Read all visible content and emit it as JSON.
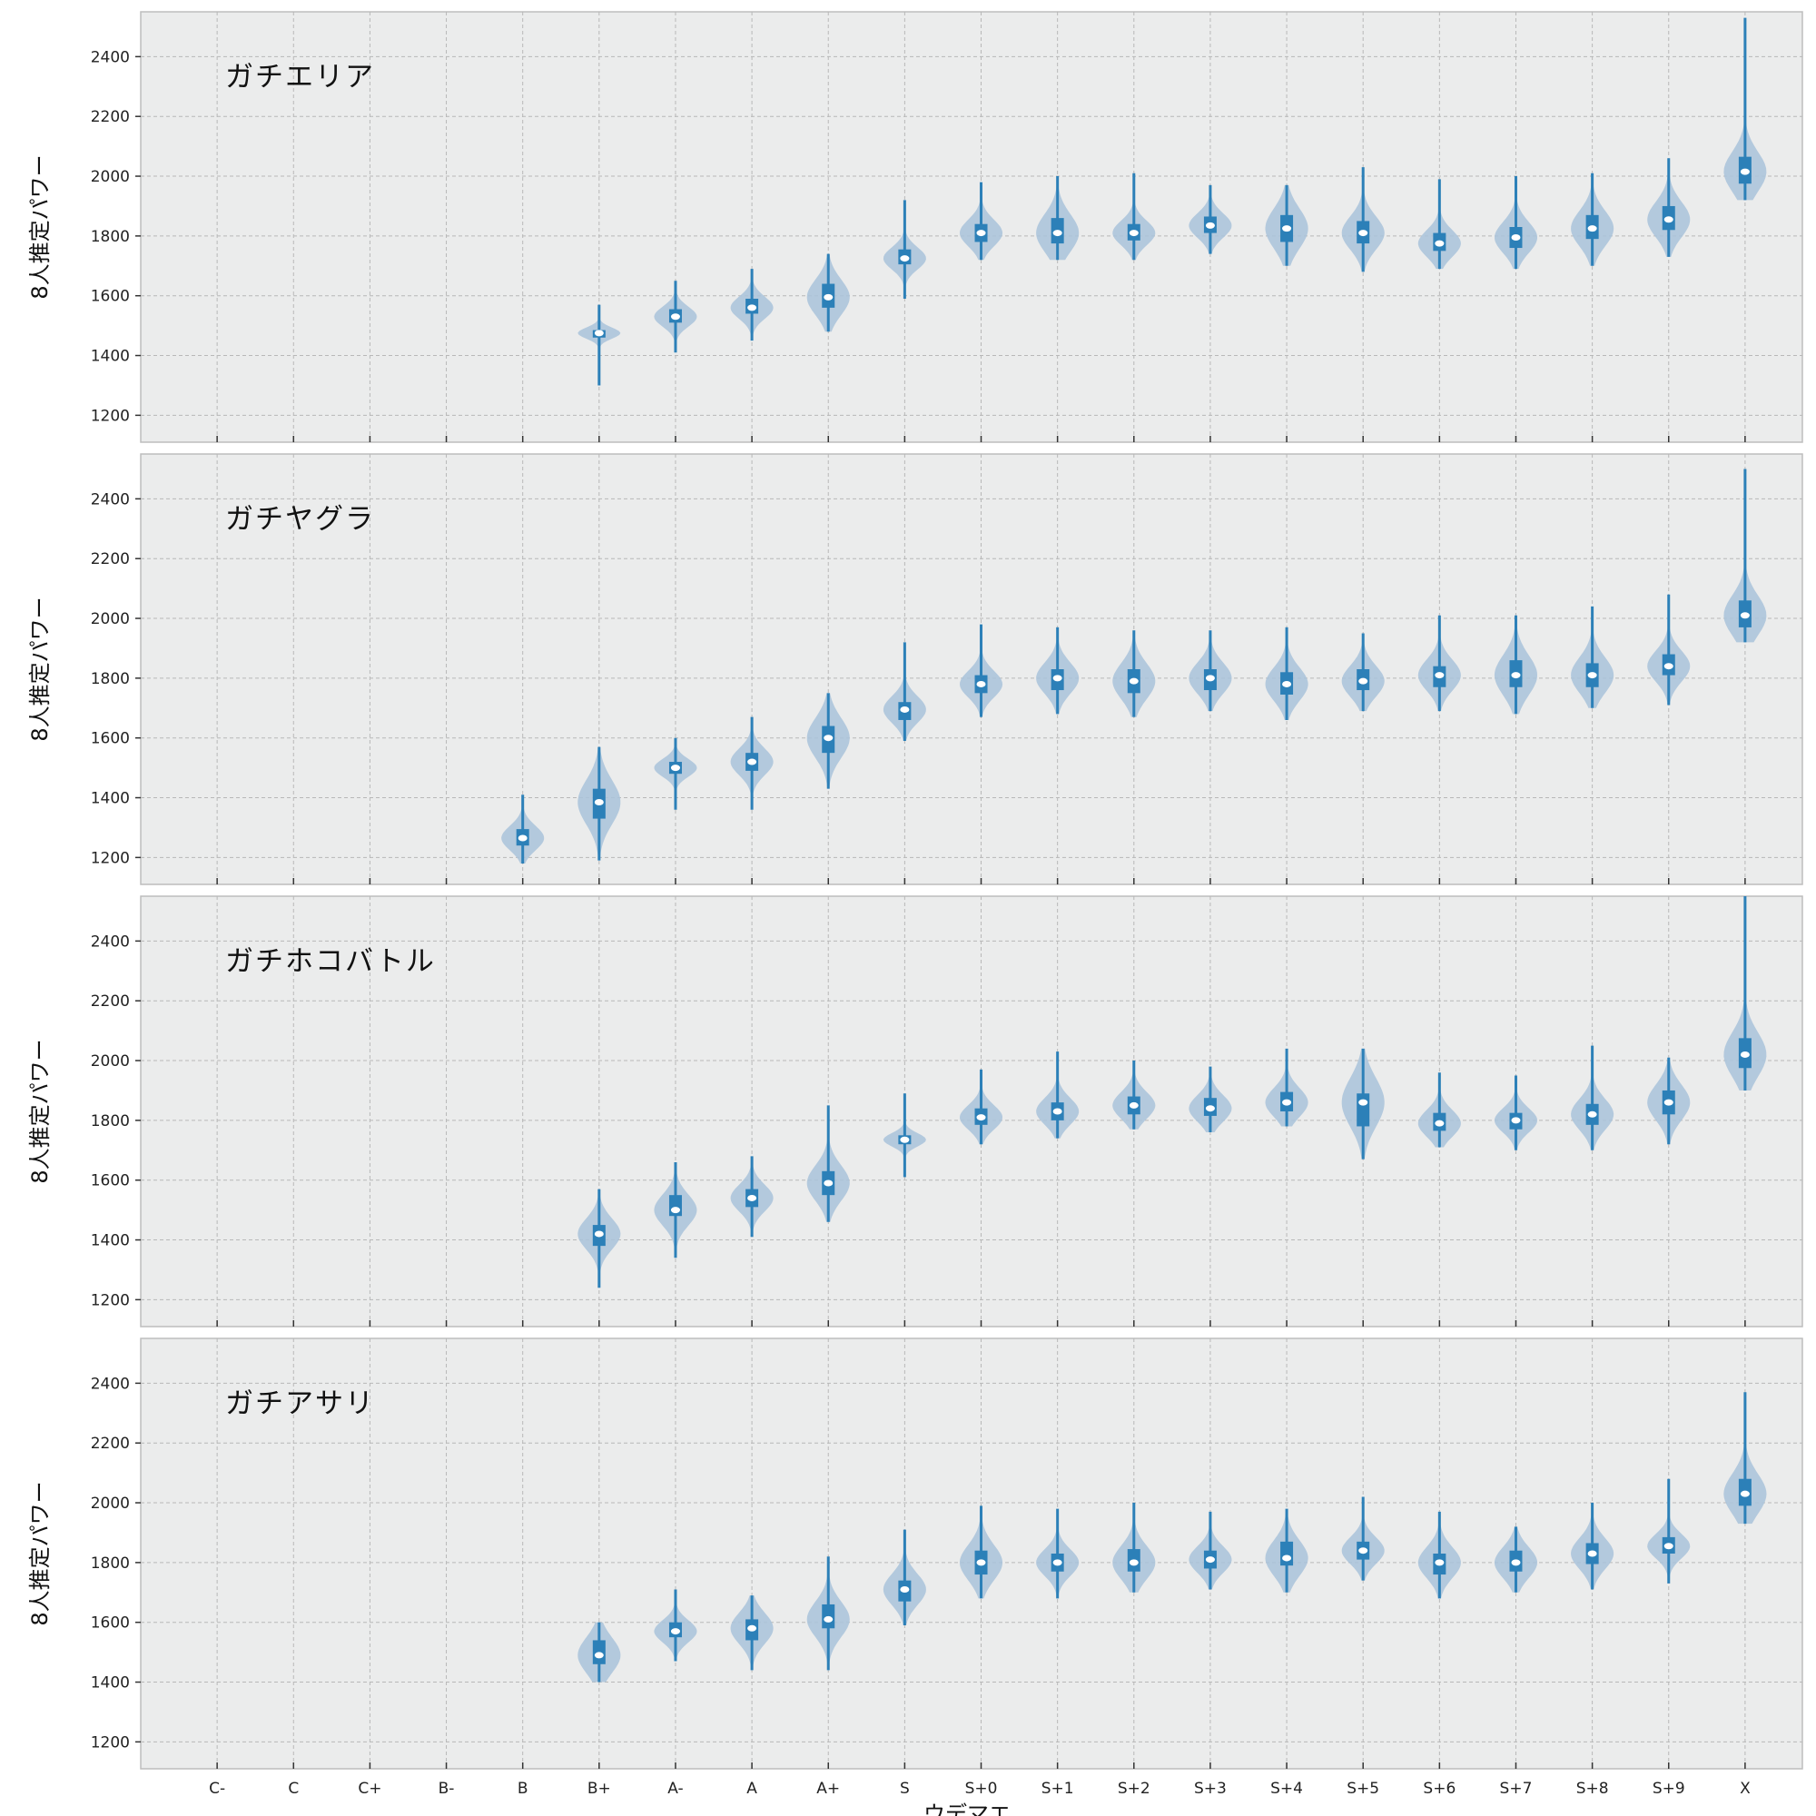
{
  "chart_data": {
    "type": "violin",
    "xlabel": "ウデマエ",
    "ylabel": "8人推定パワー",
    "categories": [
      "C-",
      "C",
      "C+",
      "B-",
      "B",
      "B+",
      "A-",
      "A",
      "A+",
      "S",
      "S+0",
      "S+1",
      "S+2",
      "S+3",
      "S+4",
      "S+5",
      "S+6",
      "S+7",
      "S+8",
      "S+9",
      "X"
    ],
    "yticks": [
      1200,
      1400,
      1600,
      1800,
      2000,
      2200,
      2400
    ],
    "ylim": [
      1110,
      2550
    ],
    "grid": true,
    "colors": {
      "body": "#a9c3db",
      "line": "#2c80b8",
      "median": "#ffffff",
      "background": "#ebecec",
      "grid": "#b8b8b8"
    },
    "panels": [
      {
        "title": "ガチエリア",
        "violins": [
          {
            "category": "B+",
            "min": 1300,
            "max": 1570,
            "q1": 1460,
            "median": 1475,
            "q3": 1485
          },
          {
            "category": "A-",
            "min": 1410,
            "max": 1650,
            "q1": 1510,
            "median": 1530,
            "q3": 1555
          },
          {
            "category": "A",
            "min": 1450,
            "max": 1690,
            "q1": 1540,
            "median": 1560,
            "q3": 1590
          },
          {
            "category": "A+",
            "min": 1480,
            "max": 1740,
            "q1": 1560,
            "median": 1595,
            "q3": 1640
          },
          {
            "category": "S",
            "min": 1590,
            "max": 1920,
            "q1": 1705,
            "median": 1725,
            "q3": 1755
          },
          {
            "category": "S+0",
            "min": 1720,
            "max": 1980,
            "q1": 1780,
            "median": 1810,
            "q3": 1840
          },
          {
            "category": "S+1",
            "min": 1720,
            "max": 2000,
            "q1": 1775,
            "median": 1810,
            "q3": 1860
          },
          {
            "category": "S+2",
            "min": 1720,
            "max": 2010,
            "q1": 1785,
            "median": 1810,
            "q3": 1840
          },
          {
            "category": "S+3",
            "min": 1740,
            "max": 1970,
            "q1": 1810,
            "median": 1835,
            "q3": 1865
          },
          {
            "category": "S+4",
            "min": 1700,
            "max": 1970,
            "q1": 1780,
            "median": 1825,
            "q3": 1870
          },
          {
            "category": "S+5",
            "min": 1680,
            "max": 2030,
            "q1": 1775,
            "median": 1810,
            "q3": 1850
          },
          {
            "category": "S+6",
            "min": 1690,
            "max": 1990,
            "q1": 1750,
            "median": 1775,
            "q3": 1810
          },
          {
            "category": "S+7",
            "min": 1690,
            "max": 2000,
            "q1": 1760,
            "median": 1795,
            "q3": 1830
          },
          {
            "category": "S+8",
            "min": 1700,
            "max": 2010,
            "q1": 1790,
            "median": 1825,
            "q3": 1870
          },
          {
            "category": "S+9",
            "min": 1730,
            "max": 2060,
            "q1": 1820,
            "median": 1855,
            "q3": 1900
          },
          {
            "category": "X",
            "min": 1920,
            "max": 2530,
            "q1": 1975,
            "median": 2015,
            "q3": 2065
          }
        ]
      },
      {
        "title": "ガチヤグラ",
        "violins": [
          {
            "category": "B",
            "min": 1180,
            "max": 1410,
            "q1": 1240,
            "median": 1265,
            "q3": 1295
          },
          {
            "category": "B+",
            "min": 1190,
            "max": 1570,
            "q1": 1330,
            "median": 1385,
            "q3": 1430
          },
          {
            "category": "A-",
            "min": 1360,
            "max": 1600,
            "q1": 1480,
            "median": 1500,
            "q3": 1520
          },
          {
            "category": "A",
            "min": 1360,
            "max": 1670,
            "q1": 1490,
            "median": 1520,
            "q3": 1550
          },
          {
            "category": "A+",
            "min": 1430,
            "max": 1750,
            "q1": 1550,
            "median": 1600,
            "q3": 1640
          },
          {
            "category": "S",
            "min": 1590,
            "max": 1920,
            "q1": 1660,
            "median": 1695,
            "q3": 1720
          },
          {
            "category": "S+0",
            "min": 1670,
            "max": 1980,
            "q1": 1750,
            "median": 1780,
            "q3": 1810
          },
          {
            "category": "S+1",
            "min": 1680,
            "max": 1970,
            "q1": 1760,
            "median": 1800,
            "q3": 1830
          },
          {
            "category": "S+2",
            "min": 1670,
            "max": 1960,
            "q1": 1750,
            "median": 1790,
            "q3": 1830
          },
          {
            "category": "S+3",
            "min": 1690,
            "max": 1960,
            "q1": 1760,
            "median": 1800,
            "q3": 1830
          },
          {
            "category": "S+4",
            "min": 1660,
            "max": 1970,
            "q1": 1745,
            "median": 1780,
            "q3": 1820
          },
          {
            "category": "S+5",
            "min": 1690,
            "max": 1950,
            "q1": 1760,
            "median": 1790,
            "q3": 1830
          },
          {
            "category": "S+6",
            "min": 1690,
            "max": 2010,
            "q1": 1770,
            "median": 1810,
            "q3": 1840
          },
          {
            "category": "S+7",
            "min": 1680,
            "max": 2010,
            "q1": 1770,
            "median": 1810,
            "q3": 1860
          },
          {
            "category": "S+8",
            "min": 1700,
            "max": 2040,
            "q1": 1770,
            "median": 1810,
            "q3": 1850
          },
          {
            "category": "S+9",
            "min": 1710,
            "max": 2080,
            "q1": 1810,
            "median": 1840,
            "q3": 1880
          },
          {
            "category": "X",
            "min": 1920,
            "max": 2500,
            "q1": 1970,
            "median": 2010,
            "q3": 2060
          }
        ]
      },
      {
        "title": "ガチホコバトル",
        "violins": [
          {
            "category": "B+",
            "min": 1240,
            "max": 1570,
            "q1": 1380,
            "median": 1420,
            "q3": 1450
          },
          {
            "category": "A-",
            "min": 1340,
            "max": 1660,
            "q1": 1480,
            "median": 1500,
            "q3": 1550
          },
          {
            "category": "A",
            "min": 1410,
            "max": 1680,
            "q1": 1510,
            "median": 1540,
            "q3": 1570
          },
          {
            "category": "A+",
            "min": 1460,
            "max": 1850,
            "q1": 1550,
            "median": 1590,
            "q3": 1630
          },
          {
            "category": "S",
            "min": 1610,
            "max": 1890,
            "q1": 1720,
            "median": 1735,
            "q3": 1750
          },
          {
            "category": "S+0",
            "min": 1720,
            "max": 1970,
            "q1": 1785,
            "median": 1810,
            "q3": 1840
          },
          {
            "category": "S+1",
            "min": 1740,
            "max": 2030,
            "q1": 1800,
            "median": 1830,
            "q3": 1860
          },
          {
            "category": "S+2",
            "min": 1770,
            "max": 2000,
            "q1": 1820,
            "median": 1850,
            "q3": 1880
          },
          {
            "category": "S+3",
            "min": 1760,
            "max": 1980,
            "q1": 1815,
            "median": 1840,
            "q3": 1875
          },
          {
            "category": "S+4",
            "min": 1780,
            "max": 2040,
            "q1": 1830,
            "median": 1860,
            "q3": 1895
          },
          {
            "category": "S+5",
            "min": 1670,
            "max": 2040,
            "q1": 1780,
            "median": 1860,
            "q3": 1890
          },
          {
            "category": "S+6",
            "min": 1710,
            "max": 1960,
            "q1": 1765,
            "median": 1790,
            "q3": 1825
          },
          {
            "category": "S+7",
            "min": 1700,
            "max": 1950,
            "q1": 1770,
            "median": 1800,
            "q3": 1825
          },
          {
            "category": "S+8",
            "min": 1700,
            "max": 2050,
            "q1": 1785,
            "median": 1820,
            "q3": 1855
          },
          {
            "category": "S+9",
            "min": 1720,
            "max": 2010,
            "q1": 1820,
            "median": 1860,
            "q3": 1900
          },
          {
            "category": "X",
            "min": 1900,
            "max": 2550,
            "q1": 1975,
            "median": 2020,
            "q3": 2075
          }
        ]
      },
      {
        "title": "ガチアサリ",
        "violins": [
          {
            "category": "B+",
            "min": 1400,
            "max": 1600,
            "q1": 1460,
            "median": 1490,
            "q3": 1540
          },
          {
            "category": "A-",
            "min": 1470,
            "max": 1710,
            "q1": 1550,
            "median": 1570,
            "q3": 1600
          },
          {
            "category": "A",
            "min": 1440,
            "max": 1690,
            "q1": 1540,
            "median": 1580,
            "q3": 1610
          },
          {
            "category": "A+",
            "min": 1440,
            "max": 1820,
            "q1": 1580,
            "median": 1610,
            "q3": 1660
          },
          {
            "category": "S",
            "min": 1590,
            "max": 1910,
            "q1": 1670,
            "median": 1710,
            "q3": 1740
          },
          {
            "category": "S+0",
            "min": 1680,
            "max": 1990,
            "q1": 1760,
            "median": 1800,
            "q3": 1840
          },
          {
            "category": "S+1",
            "min": 1680,
            "max": 1980,
            "q1": 1770,
            "median": 1800,
            "q3": 1830
          },
          {
            "category": "S+2",
            "min": 1700,
            "max": 2000,
            "q1": 1770,
            "median": 1800,
            "q3": 1845
          },
          {
            "category": "S+3",
            "min": 1710,
            "max": 1970,
            "q1": 1780,
            "median": 1810,
            "q3": 1840
          },
          {
            "category": "S+4",
            "min": 1700,
            "max": 1980,
            "q1": 1790,
            "median": 1815,
            "q3": 1870
          },
          {
            "category": "S+5",
            "min": 1740,
            "max": 2020,
            "q1": 1810,
            "median": 1840,
            "q3": 1870
          },
          {
            "category": "S+6",
            "min": 1680,
            "max": 1970,
            "q1": 1760,
            "median": 1800,
            "q3": 1830
          },
          {
            "category": "S+7",
            "min": 1700,
            "max": 1920,
            "q1": 1770,
            "median": 1800,
            "q3": 1840
          },
          {
            "category": "S+8",
            "min": 1710,
            "max": 2000,
            "q1": 1795,
            "median": 1830,
            "q3": 1865
          },
          {
            "category": "S+9",
            "min": 1730,
            "max": 2080,
            "q1": 1830,
            "median": 1855,
            "q3": 1885
          },
          {
            "category": "X",
            "min": 1930,
            "max": 2370,
            "q1": 1990,
            "median": 2030,
            "q3": 2080
          }
        ]
      }
    ]
  }
}
